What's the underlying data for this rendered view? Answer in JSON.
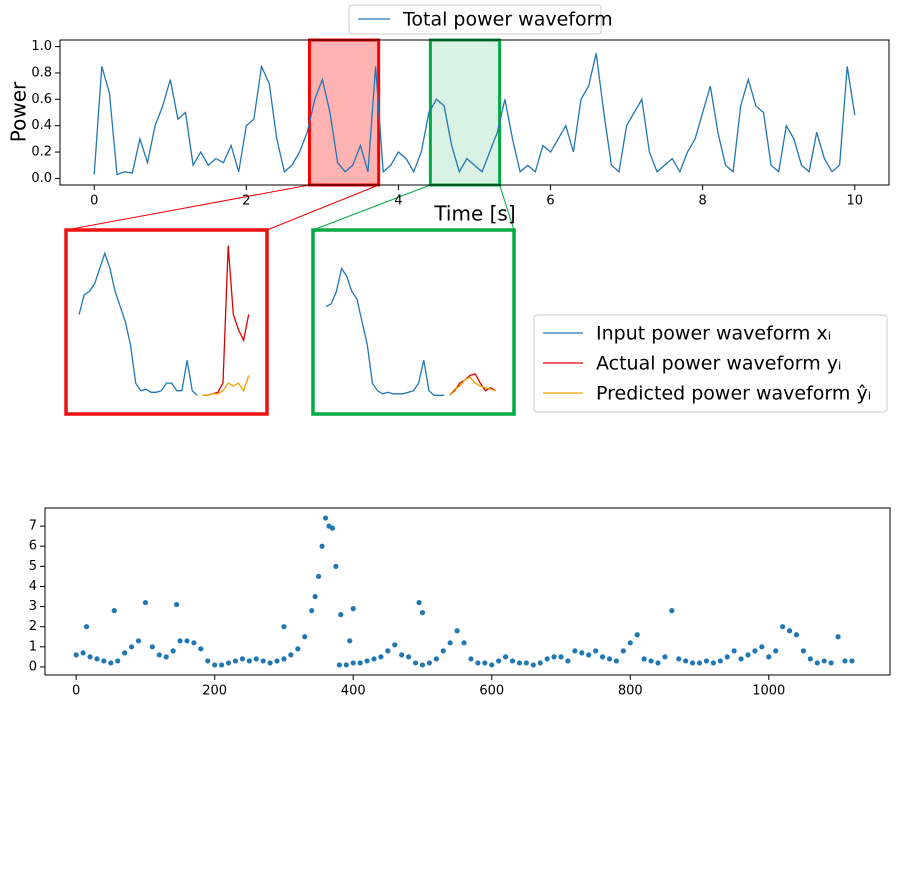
{
  "chart_data": [
    {
      "type": "line",
      "ylabel": "Power",
      "xlabel": "Time [s]",
      "x": [
        0,
        0.1,
        0.2,
        0.3,
        0.4,
        0.5,
        0.6,
        0.7,
        0.8,
        0.9,
        1,
        1.1,
        1.2,
        1.3,
        1.4,
        1.5,
        1.6,
        1.7,
        1.8,
        1.9,
        2,
        2.1,
        2.2,
        2.3,
        2.4,
        2.5,
        2.6,
        2.7,
        2.8,
        2.9,
        3,
        3.1,
        3.2,
        3.3,
        3.4,
        3.5,
        3.6,
        3.7,
        3.8,
        3.9,
        4,
        4.1,
        4.2,
        4.3,
        4.4,
        4.5,
        4.6,
        4.7,
        4.8,
        4.9,
        5,
        5.1,
        5.2,
        5.3,
        5.4,
        5.5,
        5.6,
        5.7,
        5.8,
        5.9,
        6,
        6.1,
        6.2,
        6.3,
        6.4,
        6.5,
        6.6,
        6.7,
        6.8,
        6.9,
        7,
        7.1,
        7.2,
        7.3,
        7.4,
        7.5,
        7.6,
        7.7,
        7.8,
        7.9,
        8,
        8.1,
        8.2,
        8.3,
        8.4,
        8.5,
        8.6,
        8.7,
        8.8,
        8.9,
        9,
        9.1,
        9.2,
        9.3,
        9.4,
        9.5,
        9.6,
        9.7,
        9.8,
        9.9,
        10
      ],
      "series": [
        {
          "name": "Total power waveform",
          "color": "#1f77b4",
          "values": [
            0.03,
            0.85,
            0.65,
            0.03,
            0.05,
            0.04,
            0.3,
            0.12,
            0.4,
            0.55,
            0.75,
            0.45,
            0.5,
            0.1,
            0.2,
            0.1,
            0.15,
            0.12,
            0.25,
            0.05,
            0.4,
            0.45,
            0.85,
            0.72,
            0.3,
            0.05,
            0.1,
            0.2,
            0.35,
            0.6,
            0.75,
            0.5,
            0.12,
            0.05,
            0.1,
            0.25,
            0.05,
            0.85,
            0.05,
            0.1,
            0.2,
            0.15,
            0.05,
            0.2,
            0.5,
            0.6,
            0.55,
            0.25,
            0.05,
            0.15,
            0.1,
            0.05,
            0.2,
            0.35,
            0.6,
            0.3,
            0.05,
            0.1,
            0.05,
            0.25,
            0.2,
            0.3,
            0.4,
            0.2,
            0.6,
            0.7,
            0.95,
            0.5,
            0.1,
            0.05,
            0.4,
            0.5,
            0.6,
            0.2,
            0.05,
            0.1,
            0.15,
            0.05,
            0.2,
            0.3,
            0.5,
            0.7,
            0.35,
            0.1,
            0.05,
            0.55,
            0.75,
            0.55,
            0.5,
            0.1,
            0.05,
            0.4,
            0.3,
            0.1,
            0.05,
            0.35,
            0.15,
            0.05,
            0.1,
            0.85,
            0.48
          ]
        }
      ],
      "xlim": [
        -0.45,
        10.45
      ],
      "ylim": [
        -0.05,
        1.05
      ],
      "xticks": [
        0,
        2,
        4,
        6,
        8,
        10
      ],
      "yticks": [
        {
          "value": 0,
          "label": "0.0"
        },
        0.2,
        0.4,
        0.6,
        0.8,
        {
          "value": 1,
          "label": "1.0"
        }
      ],
      "highlights": [
        {
          "start": 2.83,
          "end": 3.74,
          "color": "#ff0000"
        },
        {
          "start": 4.42,
          "end": 5.33,
          "color": "#00aa44"
        }
      ]
    },
    {
      "type": "line",
      "frame_color": "#ee1111",
      "xlim": [
        -1,
        35
      ],
      "ylim": [
        -0.05,
        1.05
      ],
      "series": [
        {
          "name": "Input power waveform xᵢ",
          "color": "#1f77b4",
          "x": [
            0,
            1,
            2,
            3,
            4,
            5,
            6,
            7,
            8,
            9,
            10,
            11,
            12,
            13,
            14,
            15,
            16,
            17,
            18,
            19,
            20,
            21,
            22,
            23
          ],
          "values": [
            0.55,
            0.68,
            0.7,
            0.75,
            0.85,
            0.95,
            0.85,
            0.7,
            0.6,
            0.5,
            0.35,
            0.1,
            0.05,
            0.06,
            0.04,
            0.04,
            0.05,
            0.1,
            0.1,
            0.05,
            0.05,
            0.25,
            0.05,
            0.02
          ]
        },
        {
          "name": "Actual power waveform yᵢ",
          "color": "#dd0000",
          "x": [
            24,
            25,
            26,
            27,
            28,
            29,
            30,
            31,
            32,
            33
          ],
          "values": [
            0.02,
            0.02,
            0.03,
            0.04,
            0.1,
            1.0,
            0.55,
            0.45,
            0.38,
            0.55
          ]
        },
        {
          "name": "Predicted power waveform ŷᵢ",
          "color": "#f0a000",
          "x": [
            24,
            25,
            26,
            27,
            28,
            29,
            30,
            31,
            32,
            33
          ],
          "values": [
            0.02,
            0.02,
            0.03,
            0.03,
            0.05,
            0.1,
            0.08,
            0.1,
            0.05,
            0.15
          ]
        }
      ]
    },
    {
      "type": "line",
      "frame_color": "#00aa44",
      "xlim": [
        -1,
        35
      ],
      "ylim": [
        -0.05,
        1.05
      ],
      "series": [
        {
          "color": "#1f77b4",
          "x": [
            0,
            1,
            2,
            3,
            4,
            5,
            6,
            7,
            8,
            9,
            10,
            11,
            12,
            13,
            14,
            15,
            16,
            17,
            18,
            19,
            20,
            21,
            22,
            23
          ],
          "values": [
            0.6,
            0.62,
            0.7,
            0.85,
            0.8,
            0.7,
            0.65,
            0.5,
            0.35,
            0.1,
            0.05,
            0.03,
            0.04,
            0.03,
            0.03,
            0.03,
            0.04,
            0.05,
            0.1,
            0.25,
            0.05,
            0.02,
            0.02,
            0.02
          ]
        },
        {
          "color": "#dd0000",
          "x": [
            24,
            25,
            26,
            27,
            28,
            29,
            30,
            31,
            32,
            33
          ],
          "values": [
            0.02,
            0.05,
            0.1,
            0.12,
            0.15,
            0.16,
            0.1,
            0.05,
            0.07,
            0.05
          ]
        },
        {
          "color": "#f0a000",
          "x": [
            24,
            25,
            26,
            27,
            28,
            29,
            30,
            31,
            32,
            33
          ],
          "values": [
            0.02,
            0.06,
            0.08,
            0.12,
            0.14,
            0.1,
            0.08,
            0.07,
            0.06,
            0.05
          ]
        }
      ]
    },
    {
      "type": "scatter",
      "color": "#1f77b4",
      "xlim": [
        -45,
        1175
      ],
      "ylim": [
        -0.4,
        7.9
      ],
      "xticks": [
        0,
        200,
        400,
        600,
        800,
        1000
      ],
      "yticks": [
        0,
        1,
        2,
        3,
        4,
        5,
        6,
        7
      ],
      "x": [
        0,
        10,
        20,
        30,
        40,
        50,
        60,
        70,
        80,
        90,
        100,
        110,
        120,
        130,
        140,
        150,
        160,
        170,
        180,
        190,
        200,
        210,
        220,
        230,
        240,
        250,
        260,
        270,
        280,
        290,
        300,
        310,
        320,
        330,
        340,
        350,
        360,
        370,
        380,
        390,
        400,
        410,
        420,
        430,
        440,
        450,
        460,
        470,
        480,
        490,
        500,
        510,
        520,
        530,
        540,
        550,
        560,
        570,
        580,
        590,
        600,
        610,
        620,
        630,
        640,
        650,
        660,
        670,
        680,
        690,
        700,
        710,
        720,
        730,
        740,
        750,
        760,
        770,
        780,
        790,
        800,
        810,
        820,
        830,
        840,
        850,
        860,
        870,
        880,
        890,
        900,
        910,
        920,
        930,
        940,
        950,
        960,
        970,
        980,
        990,
        1000,
        1010,
        1020,
        1030,
        1040,
        1050,
        1060,
        1070,
        1080,
        1090,
        1100,
        1110,
        1120,
        15,
        55,
        145,
        300,
        345,
        355,
        365,
        375,
        382,
        395,
        400,
        495,
        500
      ],
      "values": [
        0.6,
        0.7,
        0.5,
        0.4,
        0.3,
        0.2,
        0.3,
        0.7,
        1.0,
        1.3,
        3.2,
        1.0,
        0.6,
        0.5,
        0.8,
        1.3,
        1.3,
        1.2,
        0.9,
        0.3,
        0.1,
        0.1,
        0.2,
        0.3,
        0.4,
        0.3,
        0.4,
        0.3,
        0.2,
        0.3,
        0.4,
        0.6,
        0.9,
        1.5,
        2.8,
        4.5,
        7.4,
        6.9,
        0.1,
        0.1,
        0.2,
        0.2,
        0.3,
        0.4,
        0.5,
        0.8,
        1.1,
        0.6,
        0.5,
        0.2,
        0.1,
        0.2,
        0.4,
        0.8,
        1.2,
        1.8,
        1.2,
        0.4,
        0.2,
        0.2,
        0.1,
        0.3,
        0.5,
        0.3,
        0.2,
        0.2,
        0.1,
        0.2,
        0.4,
        0.5,
        0.5,
        0.3,
        0.8,
        0.7,
        0.6,
        0.8,
        0.5,
        0.4,
        0.3,
        0.8,
        1.2,
        1.6,
        0.4,
        0.3,
        0.2,
        0.5,
        2.8,
        0.4,
        0.3,
        0.2,
        0.2,
        0.3,
        0.2,
        0.3,
        0.5,
        0.8,
        0.4,
        0.6,
        0.8,
        1.0,
        0.5,
        0.8,
        2.0,
        1.8,
        1.6,
        0.8,
        0.4,
        0.2,
        0.3,
        0.2,
        1.5,
        0.3,
        0.3,
        2.0,
        2.8,
        3.1,
        2.0,
        3.5,
        6.0,
        7.0,
        5.0,
        2.6,
        1.3,
        2.9,
        3.2,
        2.7
      ]
    }
  ]
}
